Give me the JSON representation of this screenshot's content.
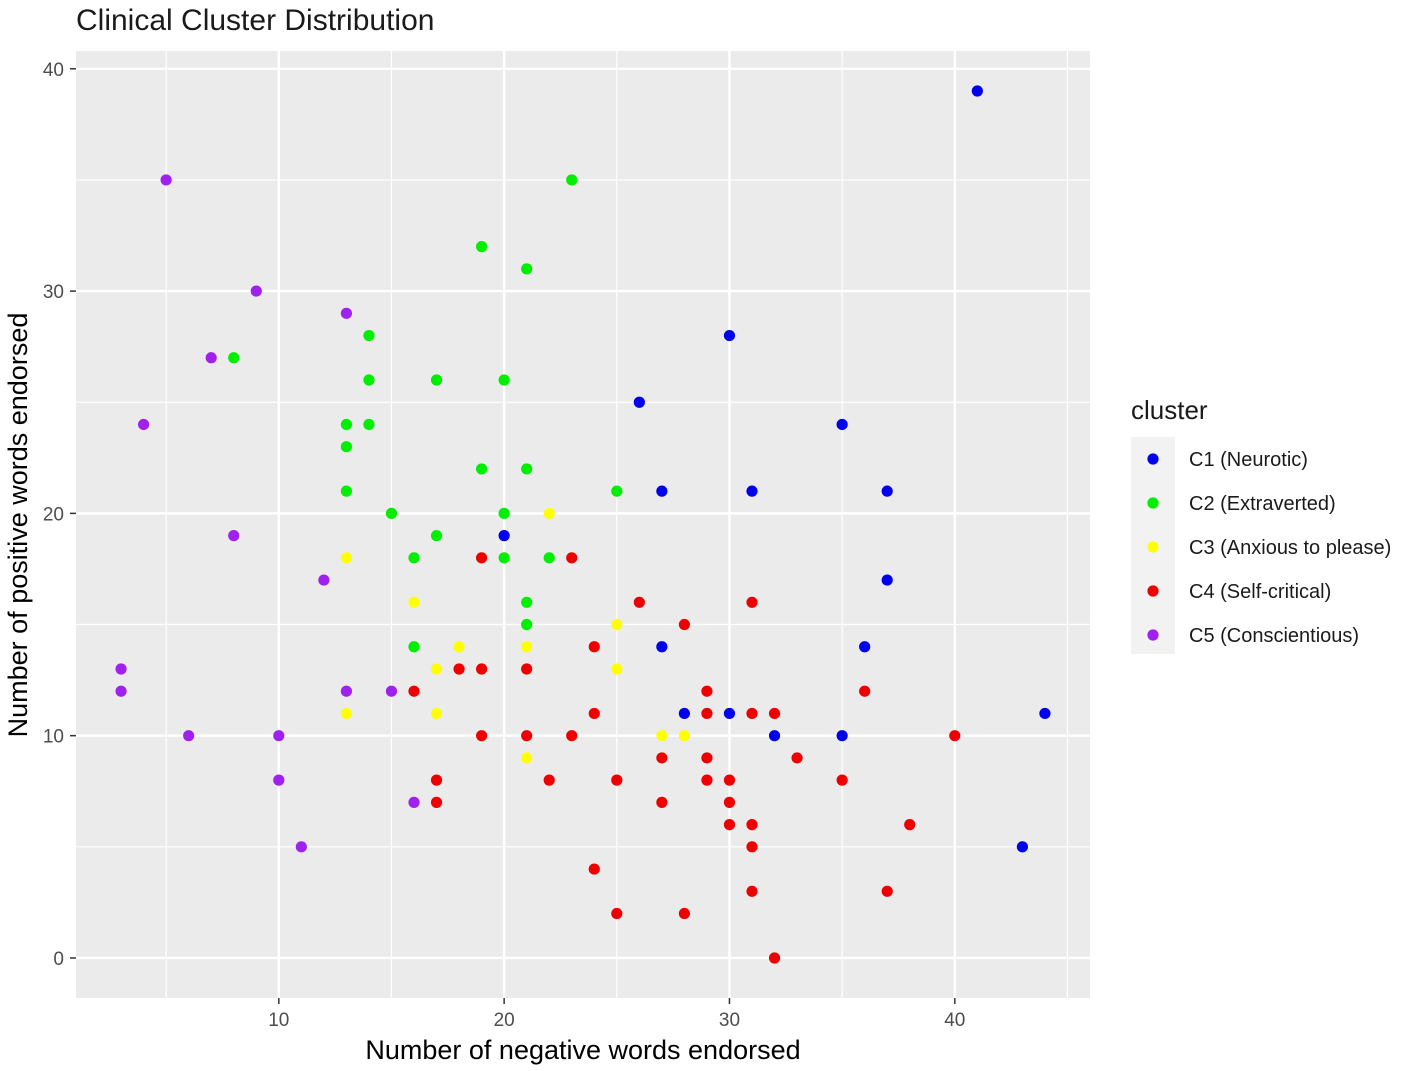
{
  "chart_data": {
    "type": "scatter",
    "title": "Clinical Cluster Distribution",
    "xlabel": "Number of negative words endorsed",
    "ylabel": "Number of positive words endorsed",
    "xlim": [
      1,
      46
    ],
    "ylim": [
      -1.8,
      40.8
    ],
    "xticks": [
      10,
      20,
      30,
      40
    ],
    "yticks": [
      0,
      10,
      20,
      30,
      40
    ],
    "grid": true,
    "legend_title": "cluster",
    "legend_position": "right",
    "series": [
      {
        "name": "C1 (Neurotic)",
        "color": "#0000ee",
        "points": [
          [
            41,
            39
          ],
          [
            30,
            28
          ],
          [
            26,
            25
          ],
          [
            35,
            24
          ],
          [
            27,
            21
          ],
          [
            31,
            21
          ],
          [
            37,
            21
          ],
          [
            20,
            19
          ],
          [
            37,
            17
          ],
          [
            36,
            14
          ],
          [
            27,
            14
          ],
          [
            28,
            11
          ],
          [
            30,
            11
          ],
          [
            44,
            11
          ],
          [
            32,
            10
          ],
          [
            35,
            10
          ],
          [
            43,
            5
          ]
        ]
      },
      {
        "name": "C2 (Extraverted)",
        "color": "#00ee00",
        "points": [
          [
            23,
            35
          ],
          [
            19,
            32
          ],
          [
            21,
            31
          ],
          [
            14,
            28
          ],
          [
            8,
            27
          ],
          [
            14,
            26
          ],
          [
            17,
            26
          ],
          [
            20,
            26
          ],
          [
            13,
            24
          ],
          [
            14,
            24
          ],
          [
            13,
            23
          ],
          [
            19,
            22
          ],
          [
            21,
            22
          ],
          [
            13,
            21
          ],
          [
            25,
            21
          ],
          [
            15,
            20
          ],
          [
            20,
            20
          ],
          [
            17,
            19
          ],
          [
            16,
            18
          ],
          [
            20,
            18
          ],
          [
            22,
            18
          ],
          [
            21,
            16
          ],
          [
            21,
            15
          ],
          [
            16,
            14
          ]
        ]
      },
      {
        "name": "C3 (Anxious to please)",
        "color": "#ffff00",
        "points": [
          [
            22,
            20
          ],
          [
            13,
            18
          ],
          [
            16,
            16
          ],
          [
            25,
            15
          ],
          [
            18,
            14
          ],
          [
            21,
            14
          ],
          [
            17,
            13
          ],
          [
            25,
            13
          ],
          [
            13,
            11
          ],
          [
            17,
            11
          ],
          [
            27,
            10
          ],
          [
            28,
            10
          ],
          [
            21,
            9
          ]
        ]
      },
      {
        "name": "C4 (Self-critical)",
        "color": "#ee0000",
        "points": [
          [
            19,
            18
          ],
          [
            23,
            18
          ],
          [
            26,
            16
          ],
          [
            31,
            16
          ],
          [
            28,
            15
          ],
          [
            24,
            14
          ],
          [
            18,
            13
          ],
          [
            19,
            13
          ],
          [
            21,
            13
          ],
          [
            16,
            12
          ],
          [
            29,
            12
          ],
          [
            36,
            12
          ],
          [
            24,
            11
          ],
          [
            29,
            11
          ],
          [
            31,
            11
          ],
          [
            32,
            11
          ],
          [
            19,
            10
          ],
          [
            21,
            10
          ],
          [
            23,
            10
          ],
          [
            40,
            10
          ],
          [
            27,
            9
          ],
          [
            29,
            9
          ],
          [
            33,
            9
          ],
          [
            17,
            8
          ],
          [
            22,
            8
          ],
          [
            25,
            8
          ],
          [
            29,
            8
          ],
          [
            30,
            8
          ],
          [
            35,
            8
          ],
          [
            17,
            7
          ],
          [
            27,
            7
          ],
          [
            30,
            7
          ],
          [
            30,
            6
          ],
          [
            31,
            6
          ],
          [
            38,
            6
          ],
          [
            31,
            5
          ],
          [
            24,
            4
          ],
          [
            31,
            3
          ],
          [
            37,
            3
          ],
          [
            25,
            2
          ],
          [
            28,
            2
          ],
          [
            32,
            0
          ]
        ]
      },
      {
        "name": "C5 (Conscientious)",
        "color": "#a020f0",
        "points": [
          [
            5,
            35
          ],
          [
            9,
            30
          ],
          [
            13,
            29
          ],
          [
            7,
            27
          ],
          [
            4,
            24
          ],
          [
            8,
            19
          ],
          [
            12,
            17
          ],
          [
            3,
            13
          ],
          [
            3,
            12
          ],
          [
            13,
            12
          ],
          [
            15,
            12
          ],
          [
            6,
            10
          ],
          [
            10,
            10
          ],
          [
            10,
            8
          ],
          [
            16,
            7
          ],
          [
            11,
            5
          ]
        ]
      }
    ]
  }
}
